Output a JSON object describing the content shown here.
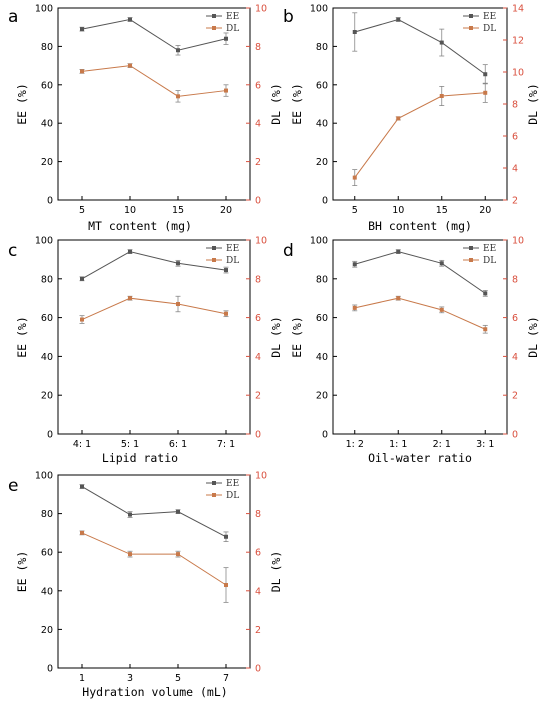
{
  "colors": {
    "ee": "#555555",
    "dl": "#c8794a",
    "dl_axis": "#d94f3d",
    "axis": "#000000"
  },
  "chart_data": [
    {
      "panel": "a",
      "type": "line",
      "categories": [
        "5",
        "10",
        "15",
        "20"
      ],
      "xlabel": "MT content (mg)",
      "ylabel_left": "EE (%)",
      "ylabel_right": "DL (%)",
      "ylim_left": [
        0,
        100
      ],
      "yticks_left": [
        0,
        20,
        40,
        60,
        80,
        100
      ],
      "ylim_right": [
        0,
        10
      ],
      "yticks_right": [
        0,
        2,
        4,
        6,
        8,
        10
      ],
      "legend": "top-right",
      "series": [
        {
          "name": "EE",
          "axis": "left",
          "values": [
            89,
            94,
            78,
            84
          ],
          "errors": [
            1,
            1,
            2.5,
            3
          ]
        },
        {
          "name": "DL",
          "axis": "right",
          "values": [
            6.7,
            7.0,
            5.4,
            5.7
          ],
          "errors": [
            0.1,
            0.1,
            0.3,
            0.3
          ]
        }
      ]
    },
    {
      "panel": "b",
      "type": "line",
      "categories": [
        "5",
        "10",
        "15",
        "20"
      ],
      "xlabel": "BH content (mg)",
      "ylabel_left": "EE (%)",
      "ylabel_right": "DL (%)",
      "ylim_left": [
        0,
        100
      ],
      "yticks_left": [
        0,
        20,
        40,
        60,
        80,
        100
      ],
      "ylim_right": [
        2,
        14
      ],
      "yticks_right": [
        2,
        4,
        6,
        8,
        10,
        12,
        14
      ],
      "legend": "top-right",
      "series": [
        {
          "name": "EE",
          "axis": "left",
          "values": [
            87.5,
            94,
            82,
            65.5
          ],
          "errors": [
            10,
            1,
            7,
            5
          ]
        },
        {
          "name": "DL",
          "axis": "right",
          "values": [
            3.4,
            7.1,
            8.5,
            8.7
          ],
          "errors": [
            0.5,
            0.1,
            0.6,
            0.6
          ]
        }
      ]
    },
    {
      "panel": "c",
      "type": "line",
      "categories": [
        "4: 1",
        "5: 1",
        "6: 1",
        "7: 1"
      ],
      "xlabel": "Lipid ratio",
      "ylabel_left": "EE (%)",
      "ylabel_right": "DL (%)",
      "ylim_left": [
        0,
        100
      ],
      "yticks_left": [
        0,
        20,
        40,
        60,
        80,
        100
      ],
      "ylim_right": [
        0,
        10
      ],
      "yticks_right": [
        0,
        2,
        4,
        6,
        8,
        10
      ],
      "legend": "top-right",
      "series": [
        {
          "name": "EE",
          "axis": "left",
          "values": [
            80,
            94,
            88,
            84.5
          ],
          "errors": [
            1,
            1,
            1.5,
            1.5
          ]
        },
        {
          "name": "DL",
          "axis": "right",
          "values": [
            5.9,
            7.0,
            6.7,
            6.2
          ],
          "errors": [
            0.2,
            0.1,
            0.4,
            0.15
          ]
        }
      ]
    },
    {
      "panel": "d",
      "type": "line",
      "categories": [
        "1: 2",
        "1: 1",
        "2: 1",
        "3: 1"
      ],
      "xlabel": "Oil-water ratio",
      "ylabel_left": "EE (%)",
      "ylabel_right": "DL (%)",
      "ylim_left": [
        0,
        100
      ],
      "yticks_left": [
        0,
        20,
        40,
        60,
        80,
        100
      ],
      "ylim_right": [
        0,
        10
      ],
      "yticks_right": [
        0,
        2,
        4,
        6,
        8,
        10
      ],
      "legend": "top-right",
      "series": [
        {
          "name": "EE",
          "axis": "left",
          "values": [
            87.5,
            94,
            88,
            72.5
          ],
          "errors": [
            1.5,
            1,
            1.5,
            1.5
          ]
        },
        {
          "name": "DL",
          "axis": "right",
          "values": [
            6.5,
            7.0,
            6.4,
            5.4
          ],
          "errors": [
            0.15,
            0.1,
            0.15,
            0.2
          ]
        }
      ]
    },
    {
      "panel": "e",
      "type": "line",
      "categories": [
        "1",
        "3",
        "5",
        "7"
      ],
      "xlabel": "Hydration volume (mL)",
      "ylabel_left": "EE (%)",
      "ylabel_right": "DL (%)",
      "ylim_left": [
        0,
        100
      ],
      "yticks_left": [
        0,
        20,
        40,
        60,
        80,
        100
      ],
      "ylim_right": [
        0,
        10
      ],
      "yticks_right": [
        0,
        2,
        4,
        6,
        8,
        10
      ],
      "legend": "top-right",
      "series": [
        {
          "name": "EE",
          "axis": "left",
          "values": [
            94,
            79.5,
            81,
            68
          ],
          "errors": [
            1,
            1.5,
            1,
            2.5
          ]
        },
        {
          "name": "DL",
          "axis": "right",
          "values": [
            7.0,
            5.9,
            5.9,
            4.3
          ],
          "errors": [
            0.1,
            0.15,
            0.15,
            0.9
          ]
        }
      ]
    }
  ]
}
